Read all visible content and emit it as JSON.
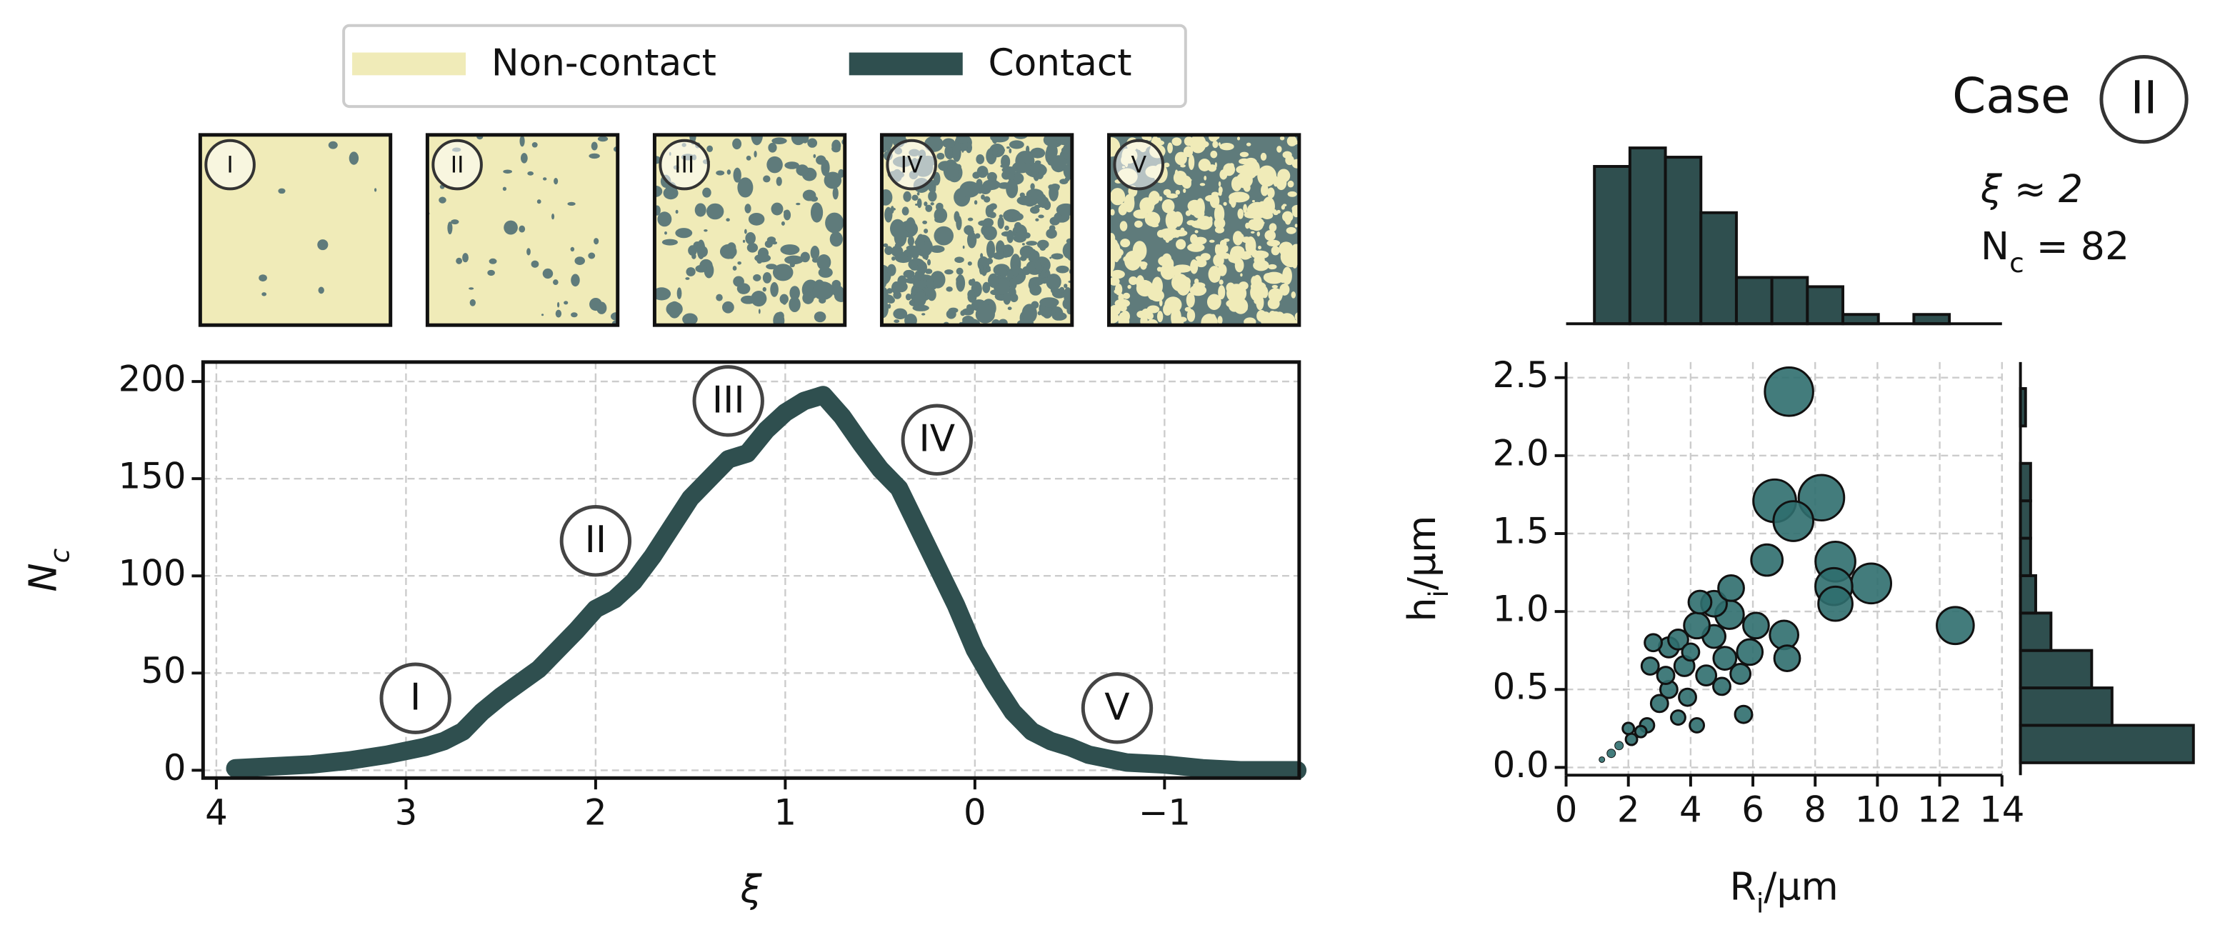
{
  "legend": [
    {
      "name": "Non-contact",
      "color": "#f0ebb8"
    },
    {
      "name": "Contact",
      "color": "#2f4f4f"
    }
  ],
  "insets": {
    "labels": [
      "I",
      "II",
      "III",
      "IV",
      "V"
    ]
  },
  "case": {
    "label": "Case",
    "number": "II",
    "xi": "ξ ≈ 2",
    "nc": {
      "text": "N",
      "sub": "c",
      "rest": " = 82"
    }
  },
  "chart_data": [
    {
      "type": "line",
      "xlabel": "ξ",
      "ylabel": {
        "text": "N",
        "sub": "c"
      },
      "color": "#2f4f4f",
      "annotations": [
        "I",
        "II",
        "III",
        "IV",
        "V"
      ],
      "x": [
        3.9,
        3.7,
        3.5,
        3.3,
        3.1,
        3.0,
        2.9,
        2.8,
        2.7,
        2.6,
        2.5,
        2.4,
        2.3,
        2.2,
        2.1,
        2.0,
        1.9,
        1.8,
        1.7,
        1.6,
        1.5,
        1.4,
        1.3,
        1.2,
        1.1,
        1.0,
        0.9,
        0.8,
        0.7,
        0.6,
        0.5,
        0.4,
        0.3,
        0.2,
        0.1,
        0.0,
        -0.1,
        -0.2,
        -0.3,
        -0.4,
        -0.5,
        -0.6,
        -0.8,
        -1.0,
        -1.2,
        -1.4,
        -1.7
      ],
      "values": [
        1,
        2,
        3,
        5,
        8,
        10,
        12,
        15,
        20,
        30,
        38,
        45,
        52,
        62,
        72,
        83,
        88,
        97,
        110,
        125,
        140,
        150,
        160,
        163,
        175,
        184,
        190,
        193,
        182,
        168,
        155,
        145,
        125,
        105,
        85,
        62,
        45,
        30,
        20,
        15,
        12,
        8,
        4,
        3,
        1,
        0,
        0
      ],
      "xlim": [
        4.07,
        -1.71
      ],
      "ylim": [
        -4,
        210
      ],
      "xticks": [
        4,
        3,
        2,
        1,
        0,
        {
          "value": -1,
          "label": "−1"
        }
      ],
      "yticks": [
        0,
        50,
        100,
        150,
        200
      ],
      "grid": true
    },
    {
      "type": "scatter",
      "xlabel": {
        "text": "R",
        "sub": "i",
        "rest": "/µm"
      },
      "ylabel": {
        "text": "h",
        "sub": "i",
        "rest": "/µm"
      },
      "color": "#2f6e6e",
      "x": [
        7.16,
        6.7,
        8.2,
        7.3,
        8.65,
        9.8,
        8.6,
        8.65,
        6.45,
        12.5,
        7.0,
        7.1,
        6.1,
        5.1,
        5.9,
        4.75,
        4.2,
        5.25,
        4.75,
        4.3,
        5.3,
        5.6,
        4.5,
        3.8,
        3.3,
        3.6,
        2.8,
        2.7,
        3.3,
        3.0,
        3.9,
        3.6,
        2.6,
        2.4,
        2.1,
        1.7,
        1.45,
        1.15,
        2.0,
        5.7,
        4.2,
        3.2,
        5.0,
        4.0
      ],
      "values": [
        2.41,
        1.71,
        1.73,
        1.58,
        1.32,
        1.18,
        1.16,
        1.05,
        1.33,
        0.91,
        0.85,
        0.7,
        0.91,
        0.7,
        0.74,
        0.84,
        0.91,
        0.98,
        1.05,
        1.06,
        1.15,
        0.6,
        0.59,
        0.65,
        0.77,
        0.82,
        0.8,
        0.65,
        0.5,
        0.41,
        0.45,
        0.32,
        0.27,
        0.23,
        0.18,
        0.14,
        0.09,
        0.05,
        0.25,
        0.34,
        0.27,
        0.59,
        0.52,
        0.74
      ],
      "sizes": [
        17,
        15,
        16,
        14,
        14,
        14,
        13,
        12,
        11,
        13,
        10,
        9,
        9,
        8,
        9,
        8,
        9,
        10,
        9,
        8,
        9,
        7,
        7,
        7,
        7,
        7,
        6,
        6,
        6,
        6,
        6,
        5,
        5,
        4,
        4,
        3,
        3,
        2,
        4,
        6,
        5,
        6,
        6,
        6
      ],
      "xlim": [
        0,
        14
      ],
      "ylim": [
        -0.05,
        2.6
      ],
      "xticks": [
        0,
        2,
        4,
        6,
        8,
        10,
        12,
        14
      ],
      "yticks": [
        {
          "value": 0,
          "label": "0.0"
        },
        0.5,
        {
          "value": 1,
          "label": "1.0"
        },
        1.5,
        {
          "value": 2,
          "label": "2.0"
        },
        2.5
      ],
      "grid": true
    },
    {
      "type": "histogram",
      "orientation": "vertical",
      "color": "#2f4f4f",
      "bins": [
        0.91,
        2.05,
        3.19,
        4.33,
        5.47,
        6.61,
        7.75,
        8.89,
        10.03,
        11.17,
        12.31
      ],
      "values": [
        17,
        19,
        18,
        12,
        5,
        5,
        4,
        1,
        0,
        1
      ],
      "xlim": [
        0,
        14
      ],
      "ylim": [
        0,
        19.95
      ]
    },
    {
      "type": "histogram",
      "orientation": "horizontal",
      "color": "#2f4f4f",
      "bins": [
        0.03,
        0.27,
        0.51,
        0.75,
        0.99,
        1.23,
        1.47,
        1.71,
        1.95,
        2.19,
        2.43
      ],
      "values": [
        34,
        18,
        14,
        6,
        3,
        2,
        2,
        2,
        0,
        1
      ],
      "xlim": [
        0,
        36
      ],
      "ylim": [
        -0.05,
        2.6
      ]
    }
  ]
}
